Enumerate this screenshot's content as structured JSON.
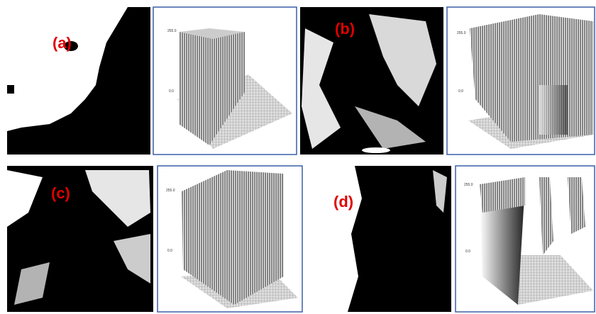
{
  "panels": [
    {
      "label": "(a)",
      "plot": {
        "z_max_label": "255.0",
        "z_min_label": "0.0"
      }
    },
    {
      "label": "(b)",
      "plot": {
        "z_max_label": "255.0",
        "z_min_label": "0.0"
      }
    },
    {
      "label": "(c)",
      "plot": {
        "z_max_label": "255.0",
        "z_min_label": "0.0"
      }
    },
    {
      "label": "(d)",
      "plot": {
        "z_max_label": "255.0",
        "z_min_label": "0.0"
      }
    }
  ]
}
